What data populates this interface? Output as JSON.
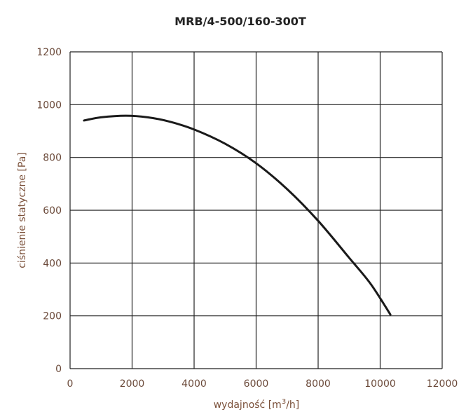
{
  "chart_data": {
    "type": "line",
    "title": "MRB/4-500/160-300T",
    "xlabel": "wydajność [m³/h]",
    "xlabel_parts": {
      "pre": "wydajność [m",
      "sup": "3",
      "post": "/h]"
    },
    "ylabel": "ciśnienie statyczne [Pa]",
    "xlim": [
      0,
      12000
    ],
    "ylim": [
      0,
      1200
    ],
    "xticks": [
      "0",
      "2000",
      "4000",
      "6000",
      "8000",
      "10000",
      "12000"
    ],
    "yticks": [
      "0",
      "200",
      "400",
      "600",
      "800",
      "1000",
      "1200"
    ],
    "grid": true,
    "series": [
      {
        "name": "MRB/4-500/160-300T",
        "color": "#1a1a1a",
        "x": [
          450,
          1000,
          1800,
          2500,
          3200,
          4000,
          5000,
          6000,
          7000,
          8000,
          9000,
          9700,
          10330
        ],
        "y": [
          940,
          952,
          958,
          952,
          936,
          906,
          852,
          778,
          680,
          560,
          420,
          320,
          205
        ]
      }
    ]
  }
}
